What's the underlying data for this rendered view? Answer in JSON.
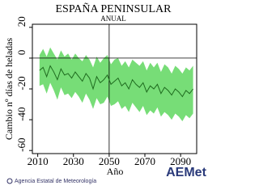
{
  "chart_data": {
    "type": "line",
    "title": "ESPAÑA PENINSULAR",
    "subtitle": "ANUAL",
    "y_label": "Cambio nº días de heladas",
    "x_label": "Año",
    "footer": "Agencia Estatal de Meteorología",
    "logo": "AEMet",
    "x": [
      2011,
      2013,
      2015,
      2017,
      2019,
      2021,
      2023,
      2025,
      2027,
      2029,
      2031,
      2033,
      2035,
      2037,
      2039,
      2041,
      2043,
      2045,
      2047,
      2049,
      2051,
      2053,
      2055,
      2057,
      2059,
      2061,
      2063,
      2065,
      2067,
      2069,
      2071,
      2073,
      2075,
      2077,
      2079,
      2081,
      2083,
      2085,
      2087,
      2089,
      2091,
      2093,
      2095,
      2097
    ],
    "series": [
      {
        "color": "#1e6b1e",
        "values": [
          -8,
          -6,
          -12,
          -5,
          -9,
          -14,
          -7,
          -11,
          -10,
          -13,
          -9,
          -12,
          -15,
          -10,
          -13,
          -20,
          -12,
          -16,
          -14,
          -11,
          -17,
          -15,
          -13,
          -18,
          -16,
          -20,
          -14,
          -17,
          -19,
          -16,
          -22,
          -18,
          -20,
          -17,
          -23,
          -19,
          -21,
          -24,
          -20,
          -22,
          -25,
          -21,
          -23,
          -20
        ]
      }
    ],
    "band": {
      "color": "#77dd77",
      "upper": [
        2,
        6,
        1,
        7,
        3,
        -1,
        5,
        1,
        3,
        -1,
        3,
        0,
        -2,
        2,
        -1,
        -6,
        1,
        -3,
        0,
        2,
        -4,
        -1,
        0,
        -5,
        -2,
        -6,
        -1,
        -3,
        -5,
        -2,
        -8,
        -3,
        -6,
        -3,
        -9,
        -4,
        -6,
        -10,
        -5,
        -7,
        -10,
        -6,
        -8,
        -5
      ],
      "lower": [
        -18,
        -17,
        -23,
        -16,
        -21,
        -27,
        -19,
        -24,
        -23,
        -26,
        -22,
        -25,
        -29,
        -23,
        -27,
        -33,
        -26,
        -30,
        -29,
        -25,
        -31,
        -30,
        -28,
        -33,
        -31,
        -35,
        -29,
        -32,
        -35,
        -31,
        -37,
        -34,
        -36,
        -32,
        -38,
        -35,
        -37,
        -40,
        -36,
        -38,
        -41,
        -37,
        -39,
        -36
      ]
    },
    "xlim": [
      2007,
      2099
    ],
    "ylim": [
      -62,
      22
    ],
    "xticks": [
      2010,
      2030,
      2050,
      2070,
      2090
    ],
    "yticks": [
      20,
      0,
      -20,
      -40,
      -60
    ],
    "vline": 2050,
    "hline": 0
  }
}
